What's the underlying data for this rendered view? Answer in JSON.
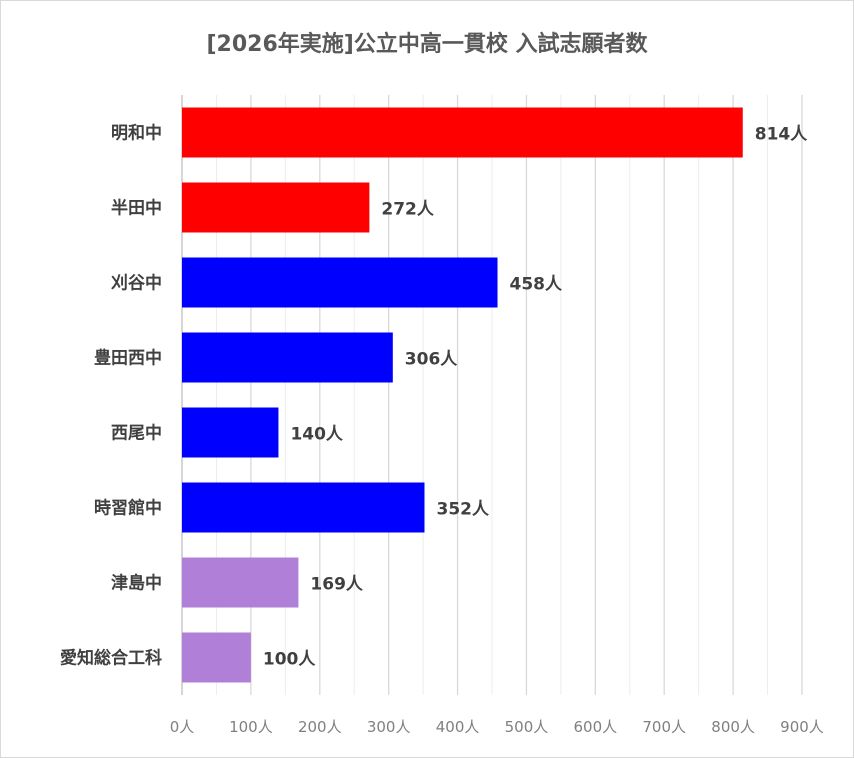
{
  "chart_data": {
    "type": "bar",
    "orientation": "horizontal",
    "title": "[2026年実施]公立中高一貫校 入試志願者数",
    "categories": [
      "明和中",
      "半田中",
      "刈谷中",
      "豊田西中",
      "西尾中",
      "時習館中",
      "津島中",
      "愛知総合工科"
    ],
    "values": [
      814,
      272,
      458,
      306,
      140,
      352,
      169,
      100
    ],
    "data_labels": [
      "814人",
      "272人",
      "458人",
      "306人",
      "140人",
      "352人",
      "169人",
      "100人"
    ],
    "colors": [
      "#ff0000",
      "#ff0000",
      "#0000ff",
      "#0000ff",
      "#0000ff",
      "#0000ff",
      "#b07fd8",
      "#b07fd8"
    ],
    "xlim": [
      0,
      900
    ],
    "xticks": [
      0,
      100,
      200,
      300,
      400,
      500,
      600,
      700,
      800,
      900
    ],
    "xtick_labels": [
      "0人",
      "100人",
      "200人",
      "300人",
      "400人",
      "500人",
      "600人",
      "700人",
      "800人",
      "900人"
    ],
    "xlabel": "",
    "ylabel": "",
    "grid": true,
    "legend": "none"
  }
}
